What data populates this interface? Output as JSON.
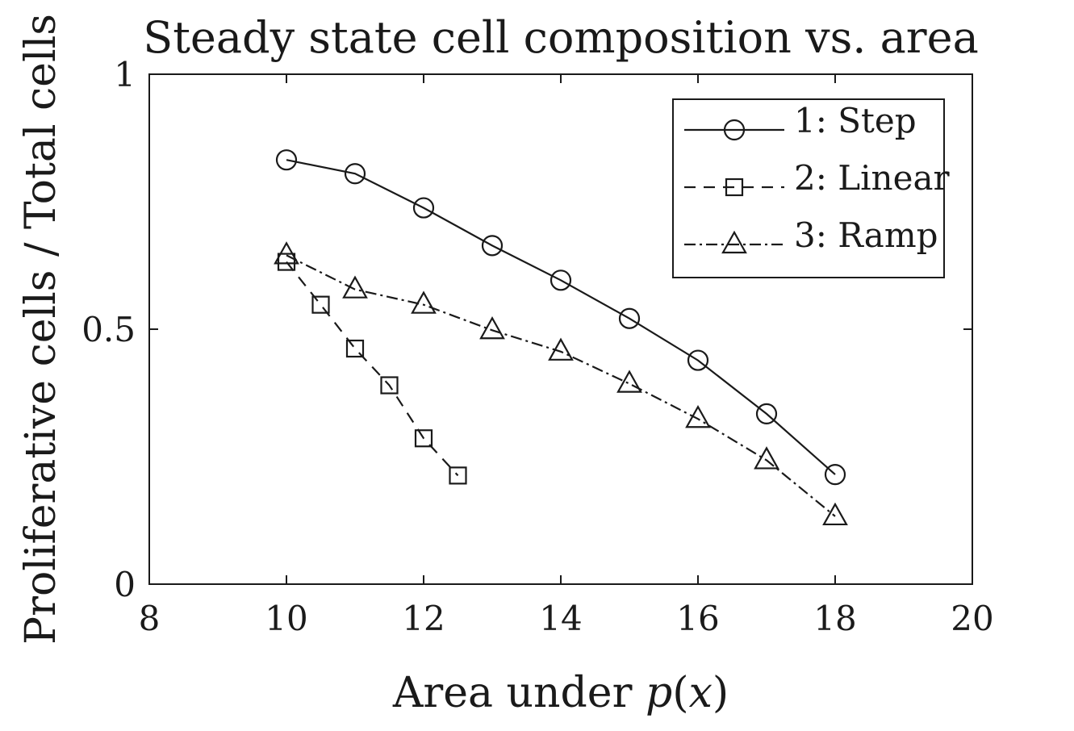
{
  "chart_data": {
    "type": "line",
    "title": "Steady state cell composition vs. area",
    "xlabel_prefix": "Area under ",
    "xlabel_var": "p",
    "xlabel_open": "(",
    "xlabel_arg": "x",
    "xlabel_close": ")",
    "ylabel": "Proliferative cells / Total cells",
    "xlim": [
      8,
      20
    ],
    "ylim": [
      0,
      1
    ],
    "xticks": [
      8,
      10,
      12,
      14,
      16,
      18,
      20
    ],
    "xtick_labels": [
      "8",
      "10",
      "12",
      "14",
      "16",
      "18",
      "20"
    ],
    "yticks": [
      0,
      0.5,
      1
    ],
    "ytick_labels": [
      "0",
      "0.5",
      "1"
    ],
    "grid": false,
    "legend_position": "top-right",
    "series": [
      {
        "name": "1: Step",
        "line_style": "solid",
        "marker": "circle",
        "x": [
          10,
          11,
          12,
          13,
          14,
          15,
          16,
          17,
          18
        ],
        "y": [
          0.832,
          0.805,
          0.738,
          0.664,
          0.596,
          0.521,
          0.439,
          0.334,
          0.215
        ]
      },
      {
        "name": "2: Linear",
        "line_style": "dashed",
        "marker": "square",
        "x": [
          10,
          10.5,
          11,
          11.5,
          12,
          12.5
        ],
        "y": [
          0.632,
          0.548,
          0.462,
          0.39,
          0.286,
          0.213
        ]
      },
      {
        "name": "3: Ramp",
        "line_style": "dashdot",
        "marker": "triangle",
        "x": [
          10,
          11,
          12,
          13,
          14,
          15,
          16,
          17,
          18
        ],
        "y": [
          0.645,
          0.578,
          0.548,
          0.498,
          0.456,
          0.393,
          0.324,
          0.243,
          0.133
        ]
      }
    ],
    "colors": {
      "ink": "#1a1a1a",
      "background": "#ffffff"
    }
  }
}
